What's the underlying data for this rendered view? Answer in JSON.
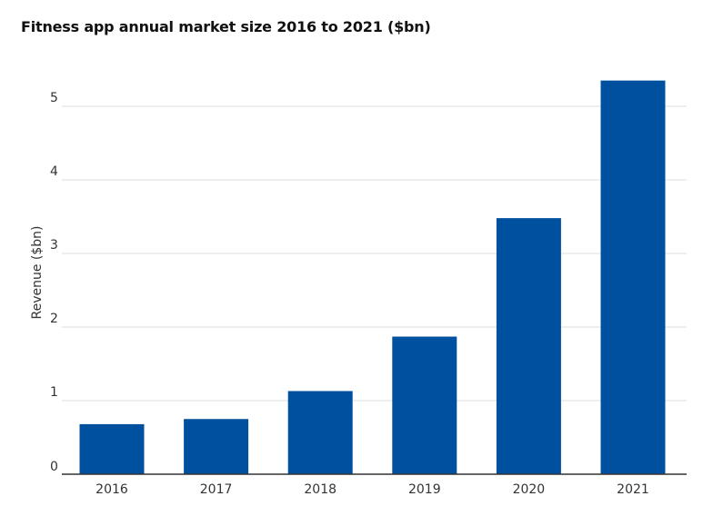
{
  "chart_data": {
    "type": "bar",
    "title": "Fitness app annual market size 2016 to 2021 ($bn)",
    "xlabel": "",
    "ylabel": "Revenue ($bn)",
    "categories": [
      "2016",
      "2017",
      "2018",
      "2019",
      "2020",
      "2021"
    ],
    "values": [
      0.68,
      0.75,
      1.13,
      1.87,
      3.48,
      5.35
    ],
    "ylim": [
      0,
      5.5
    ],
    "yticks": [
      0,
      1,
      2,
      3,
      4,
      5
    ],
    "grid": true,
    "legend": "none",
    "bar_color": "#0050a0"
  }
}
